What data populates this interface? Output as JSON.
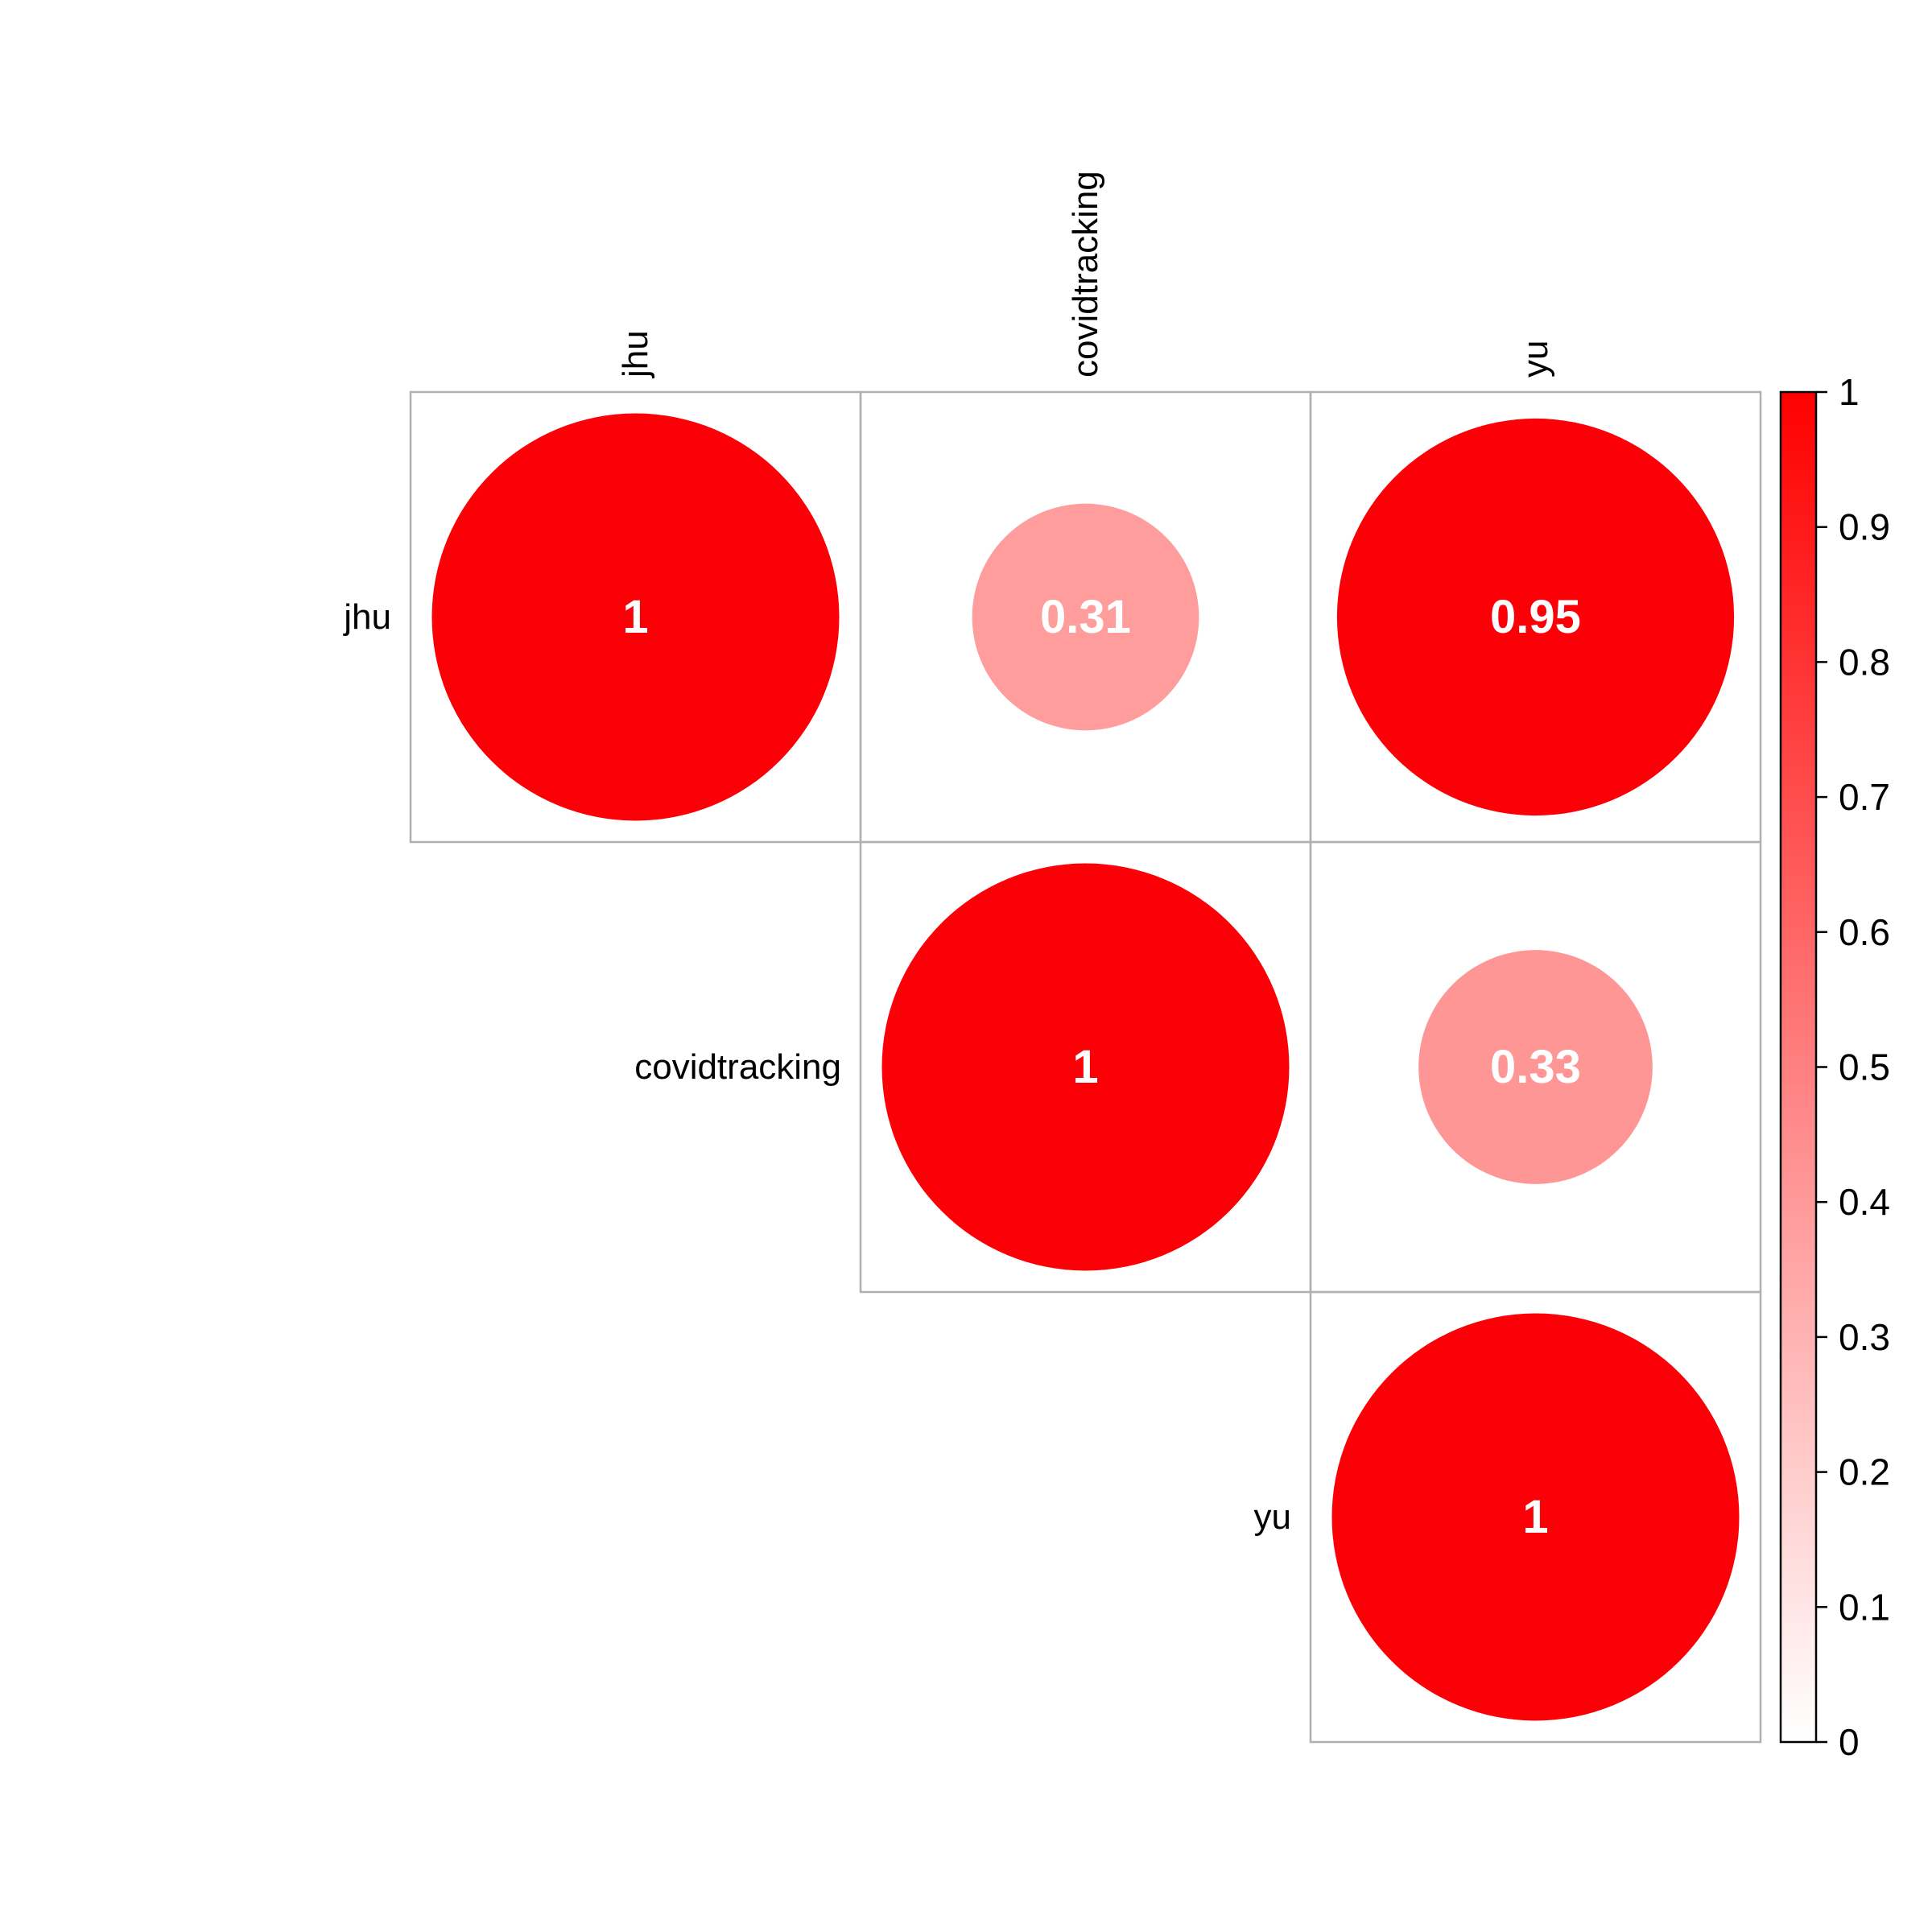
{
  "chart_data": {
    "type": "heatmap",
    "variables": [
      "jhu",
      "covidtracking",
      "yu"
    ],
    "cells": [
      {
        "row": "jhu",
        "col": "jhu",
        "value": 1,
        "label": "1"
      },
      {
        "row": "jhu",
        "col": "covidtracking",
        "value": 0.31,
        "label": "0.31"
      },
      {
        "row": "jhu",
        "col": "yu",
        "value": 0.95,
        "label": "0.95"
      },
      {
        "row": "covidtracking",
        "col": "covidtracking",
        "value": 1,
        "label": "1"
      },
      {
        "row": "covidtracking",
        "col": "yu",
        "value": 0.33,
        "label": "0.33"
      },
      {
        "row": "yu",
        "col": "yu",
        "value": 1,
        "label": "1"
      }
    ],
    "shape": "circle",
    "matrix_part": "upper",
    "colorbar": {
      "range": [
        0,
        1
      ],
      "ticks": [
        "0",
        "0.1",
        "0.2",
        "0.3",
        "0.4",
        "0.5",
        "0.6",
        "0.7",
        "0.8",
        "0.9",
        "1"
      ],
      "low_color": "#ffffff",
      "high_color": "#ff0000"
    },
    "grid": true,
    "legend": "right"
  }
}
